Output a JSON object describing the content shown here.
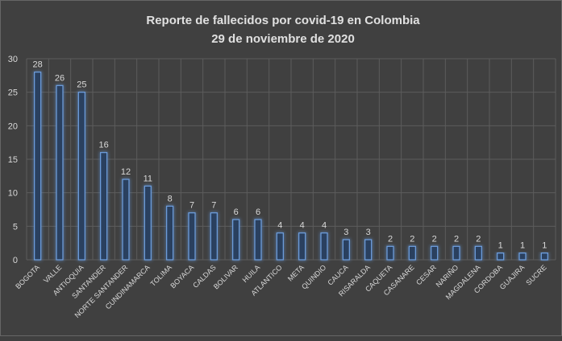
{
  "chart_data": {
    "type": "bar",
    "title": "Reporte de fallecidos por covid-19 en Colombia",
    "subtitle": "29 de noviembre de 2020",
    "xlabel": "",
    "ylabel": "",
    "ylim": [
      0,
      30
    ],
    "yticks": [
      0,
      5,
      10,
      15,
      20,
      25,
      30
    ],
    "grid": true,
    "categories": [
      "BOGOTA",
      "VALLE",
      "ANTIOQUIA",
      "SANTANDER",
      "NORTE SANTANDER",
      "CUNDINAMARCA",
      "TOLIMA",
      "BOYACA",
      "CALDAS",
      "BOLIVAR",
      "HUILA",
      "ATLANTICO",
      "META",
      "QUINDIO",
      "CAUCA",
      "RISARALDA",
      "CAQUETA",
      "CASANARE",
      "CESAR",
      "NARIÑO",
      "MAGDALENA",
      "CORDOBA",
      "GUAJIRA",
      "SUCRE"
    ],
    "values": [
      28,
      26,
      25,
      16,
      12,
      11,
      8,
      7,
      7,
      6,
      6,
      4,
      4,
      4,
      3,
      3,
      2,
      2,
      2,
      2,
      2,
      1,
      1,
      1
    ],
    "colors": {
      "bar_fill": "#2a3f5f",
      "bar_stroke": "#6fa0e0",
      "grid": "#5c5c5c",
      "text": "#d9d9d9"
    }
  }
}
